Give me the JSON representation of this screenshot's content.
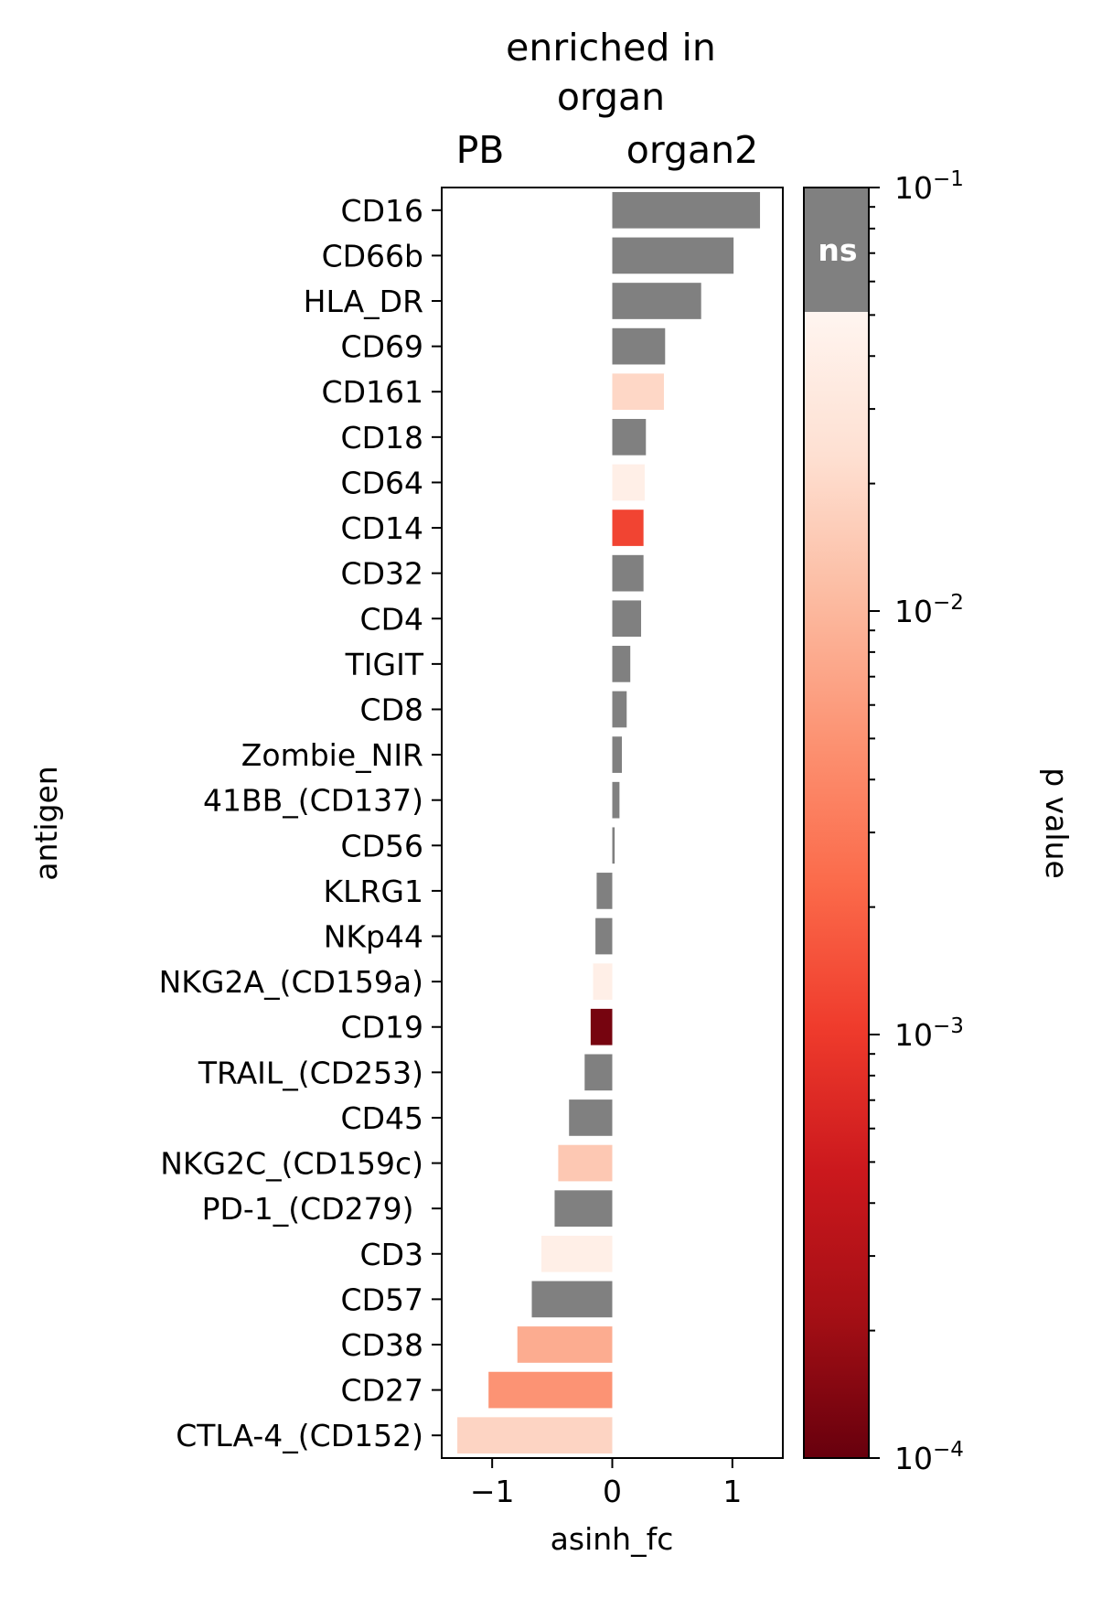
{
  "chart_data": {
    "type": "bar",
    "orientation": "horizontal",
    "title": "enriched in\norgan",
    "title_lines": [
      "enriched in",
      "organ"
    ],
    "group_left": "PB",
    "group_right": "organ2",
    "xlabel": "asinh_fc",
    "ylabel": "antigen",
    "xlim": [
      -1.42,
      1.42
    ],
    "xticks": [
      {
        "value": -1,
        "label": "−1"
      },
      {
        "value": 0,
        "label": "0"
      },
      {
        "value": 1,
        "label": "1"
      }
    ],
    "categories": [
      "CD16",
      "CD66b",
      "HLA_DR",
      "CD69",
      "CD161",
      "CD18",
      "CD64",
      "CD14",
      "CD32",
      "CD4",
      "TIGIT",
      "CD8",
      "Zombie_NIR",
      "41BB_(CD137)",
      "CD56",
      "KLRG1",
      "NKp44",
      "NKG2A_(CD159a)",
      "CD19",
      "TRAIL_(CD253)",
      "CD45",
      "NKG2C_(CD159c)",
      "PD-1_(CD279) ",
      "CD3",
      "CD57",
      "CD38",
      "CD27",
      "CTLA-4_(CD152)"
    ],
    "values": [
      1.23,
      1.01,
      0.74,
      0.44,
      0.43,
      0.28,
      0.27,
      0.26,
      0.26,
      0.24,
      0.15,
      0.12,
      0.08,
      0.06,
      0.02,
      -0.13,
      -0.14,
      -0.16,
      -0.18,
      -0.23,
      -0.36,
      -0.45,
      -0.48,
      -0.59,
      -0.67,
      -0.79,
      -1.03,
      -1.29
    ],
    "p_values": [
      0.5,
      0.06,
      0.5,
      0.5,
      0.019,
      0.5,
      0.04,
      0.0012,
      0.5,
      0.5,
      0.5,
      0.5,
      0.5,
      0.5,
      0.5,
      0.5,
      0.5,
      0.04,
      0.00012,
      0.055,
      0.5,
      0.014,
      0.5,
      0.04,
      0.055,
      0.008,
      0.005,
      0.018
    ],
    "significance_threshold": 0.05,
    "ns_color": "#808080",
    "colorbar": {
      "label": "p value",
      "scale": "log",
      "range": [
        0.0001,
        0.1
      ],
      "colormap": "Reds_r",
      "ns_label": "ns",
      "ticks": [
        {
          "value": 0.1,
          "base": "10",
          "exp": "−1"
        },
        {
          "value": 0.01,
          "base": "10",
          "exp": "−2"
        },
        {
          "value": 0.001,
          "base": "10",
          "exp": "−3"
        },
        {
          "value": 0.0001,
          "base": "10",
          "exp": "−4"
        }
      ]
    }
  }
}
